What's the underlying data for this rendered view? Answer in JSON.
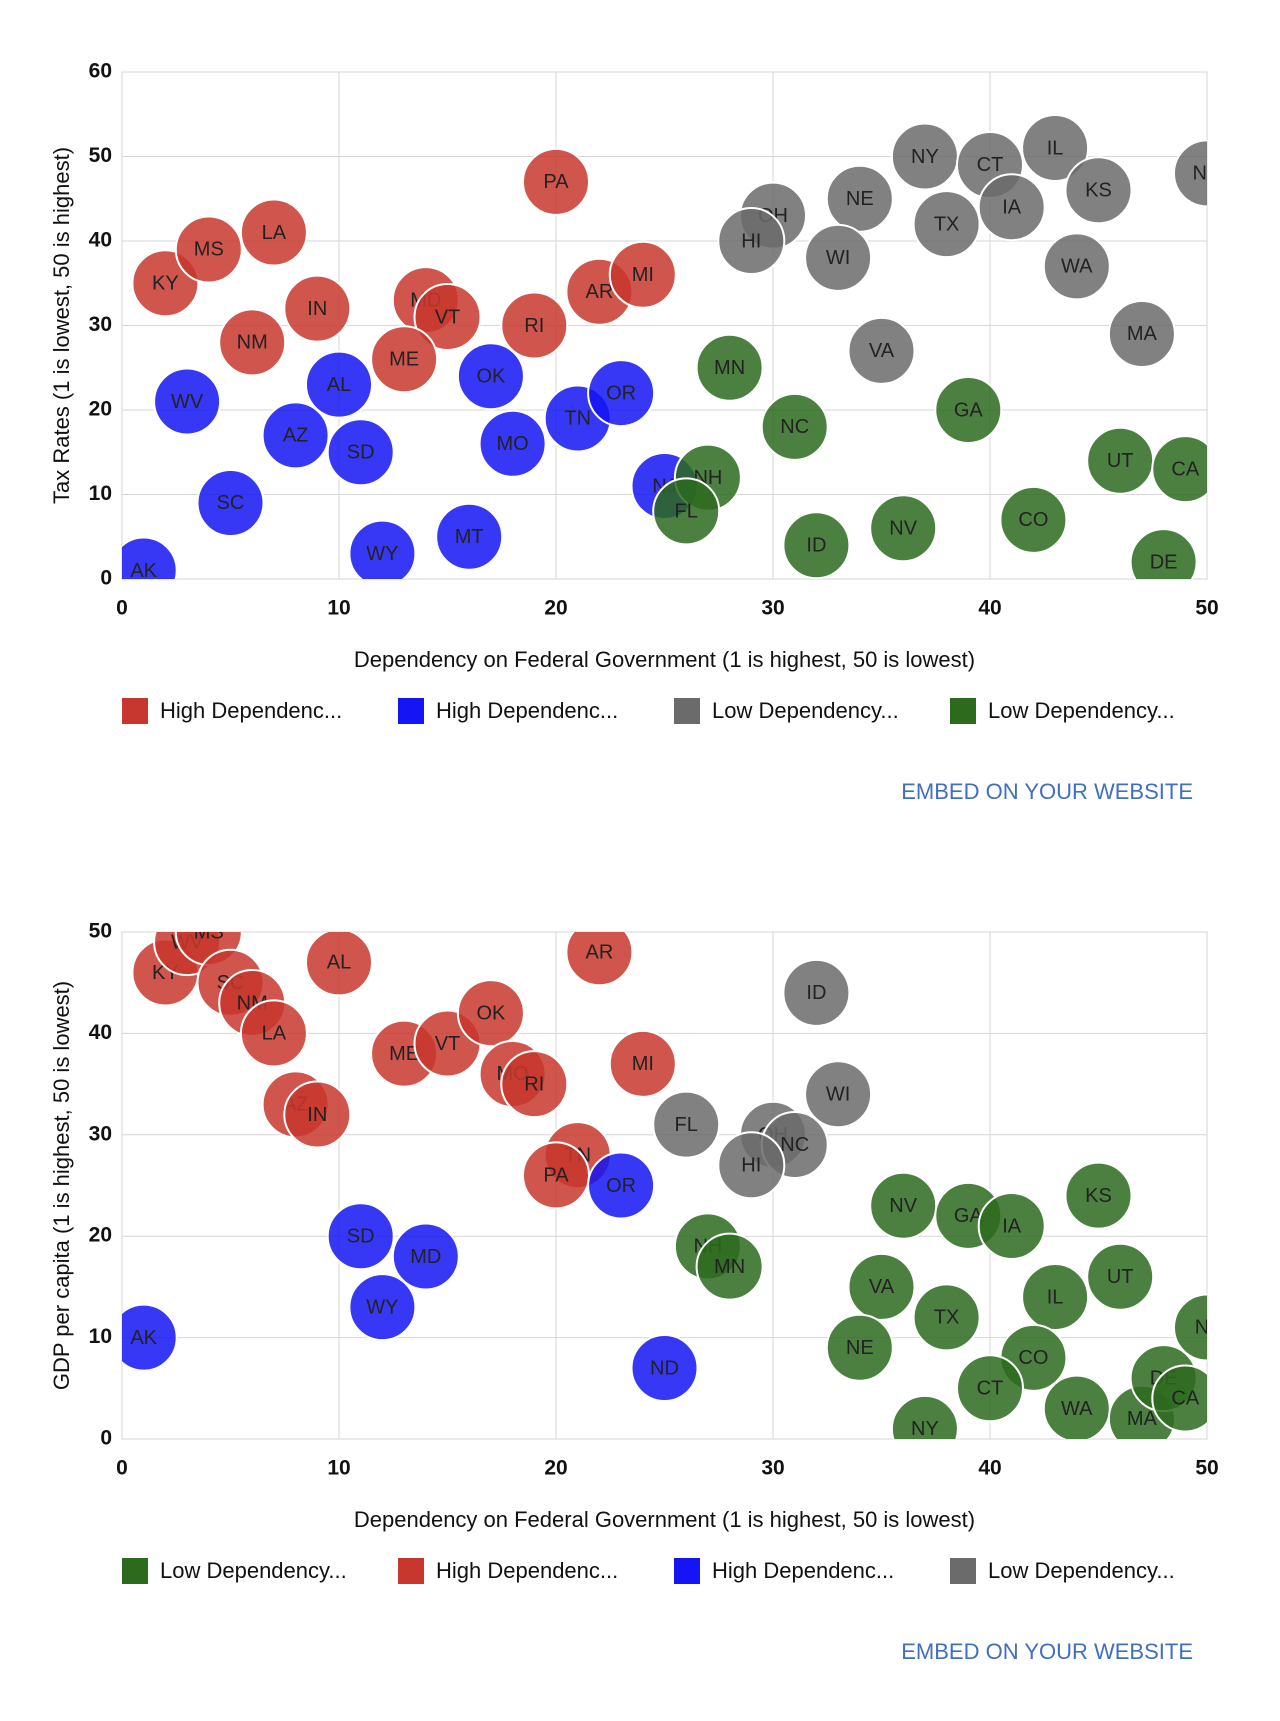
{
  "chart_data": [
    {
      "type": "scatter",
      "x_label": "Dependency on Federal Government (1 is highest, 50 is lowest)",
      "y_label": "Tax Rates (1 is lowest, 50 is highest)",
      "xlim": [
        0,
        50
      ],
      "xticks": [
        0,
        10,
        20,
        30,
        40,
        50
      ],
      "ylim": [
        0,
        60
      ],
      "yticks": [
        0,
        10,
        20,
        30,
        40,
        50,
        60
      ],
      "grid": true,
      "legend": "bottom-left",
      "embed_link": "EMBED ON YOUR WEBSITE",
      "series": [
        {
          "name": "High Dependenc...",
          "color": "#c8372d",
          "labels": [
            "KY",
            "MS",
            "LA",
            "IN",
            "NM",
            "MD",
            "VT",
            "ME",
            "RI",
            "AR",
            "MI",
            "PA"
          ],
          "x": [
            2,
            4,
            7,
            9,
            6,
            14,
            15,
            13,
            19,
            22,
            24,
            20
          ],
          "values": [
            35,
            39,
            41,
            32,
            28,
            33,
            31,
            26,
            30,
            34,
            36,
            47
          ]
        },
        {
          "name": "High Dependenc...",
          "color": "#1414f5",
          "labels": [
            "WV",
            "AL",
            "AZ",
            "SD",
            "SC",
            "AK",
            "WY",
            "MT",
            "OK",
            "MO",
            "TN",
            "OR",
            "NJ"
          ],
          "x": [
            3,
            10,
            8,
            11,
            5,
            1,
            12,
            16,
            17,
            18,
            21,
            23,
            25
          ],
          "values": [
            21,
            23,
            17,
            15,
            9,
            1,
            3,
            5,
            24,
            16,
            19,
            22,
            11
          ]
        },
        {
          "name": "Low Dependency...",
          "color": "#6b6b6b",
          "labels": [
            "NY",
            "CT",
            "IL",
            "KS",
            "NE",
            "OH",
            "HI",
            "WI",
            "TX",
            "IA",
            "WA",
            "MA",
            "VA",
            "ND"
          ],
          "x": [
            37,
            40,
            43,
            45,
            34,
            30,
            29,
            33,
            38,
            41,
            44,
            47,
            35,
            50
          ],
          "values": [
            50,
            49,
            51,
            46,
            45,
            43,
            40,
            38,
            42,
            44,
            37,
            29,
            27,
            48
          ]
        },
        {
          "name": "Low Dependency...",
          "color": "#2d6a1e",
          "labels": [
            "MN",
            "NC",
            "GA",
            "UT",
            "CA",
            "CO",
            "NV",
            "ID",
            "DE",
            "NH",
            "FL"
          ],
          "x": [
            28,
            31,
            39,
            46,
            49,
            42,
            36,
            32,
            48,
            27,
            26
          ],
          "values": [
            25,
            18,
            20,
            14,
            13,
            7,
            6,
            4,
            2,
            12,
            8
          ]
        }
      ]
    },
    {
      "type": "scatter",
      "x_label": "Dependency on Federal Government (1 is highest, 50 is lowest)",
      "y_label": "GDP per capita (1 is highest, 50 is lowest)",
      "xlim": [
        0,
        50
      ],
      "xticks": [
        0,
        10,
        20,
        30,
        40,
        50
      ],
      "ylim": [
        0,
        50
      ],
      "yticks": [
        0,
        10,
        20,
        30,
        40,
        50
      ],
      "grid": true,
      "legend": "bottom-left",
      "embed_link": "EMBED ON YOUR WEBSITE",
      "series": [
        {
          "name": "Low Dependency...",
          "color": "#2d6a1e",
          "labels": [
            "NH",
            "MN",
            "NV",
            "GA",
            "IA",
            "KS",
            "VA",
            "TX",
            "IL",
            "UT",
            "NE",
            "CO",
            "CT",
            "WA",
            "NY",
            "MA",
            "DE",
            "CA",
            "NJ"
          ],
          "x": [
            27,
            28,
            36,
            39,
            41,
            45,
            35,
            38,
            43,
            46,
            34,
            42,
            40,
            44,
            37,
            47,
            48,
            49,
            50
          ],
          "values": [
            19,
            17,
            23,
            22,
            21,
            24,
            15,
            12,
            14,
            16,
            9,
            8,
            5,
            3,
            1,
            2,
            6,
            4,
            11
          ]
        },
        {
          "name": "High Dependenc...",
          "color": "#c8372d",
          "labels": [
            "KY",
            "WV",
            "MS",
            "SC",
            "NM",
            "LA",
            "AL",
            "AZ",
            "IN",
            "ME",
            "VT",
            "OK",
            "MO",
            "RI",
            "AR",
            "MI",
            "TN",
            "PA"
          ],
          "x": [
            2,
            3,
            4,
            5,
            6,
            7,
            10,
            8,
            9,
            13,
            15,
            17,
            18,
            19,
            22,
            24,
            21,
            20
          ],
          "values": [
            46,
            49,
            50,
            45,
            43,
            40,
            47,
            33,
            32,
            38,
            39,
            42,
            36,
            35,
            48,
            37,
            28,
            26
          ]
        },
        {
          "name": "High Dependenc...",
          "color": "#1414f5",
          "labels": [
            "AK",
            "SD",
            "MD",
            "WY",
            "ND",
            "OR"
          ],
          "x": [
            1,
            11,
            14,
            12,
            25,
            23
          ],
          "values": [
            10,
            20,
            18,
            13,
            7,
            25
          ]
        },
        {
          "name": "Low Dependency...",
          "color": "#6b6b6b",
          "labels": [
            "ID",
            "WI",
            "FL",
            "OH",
            "NC",
            "HI"
          ],
          "x": [
            32,
            33,
            26,
            30,
            31,
            29
          ],
          "values": [
            44,
            34,
            31,
            30,
            29,
            27
          ]
        }
      ]
    }
  ]
}
